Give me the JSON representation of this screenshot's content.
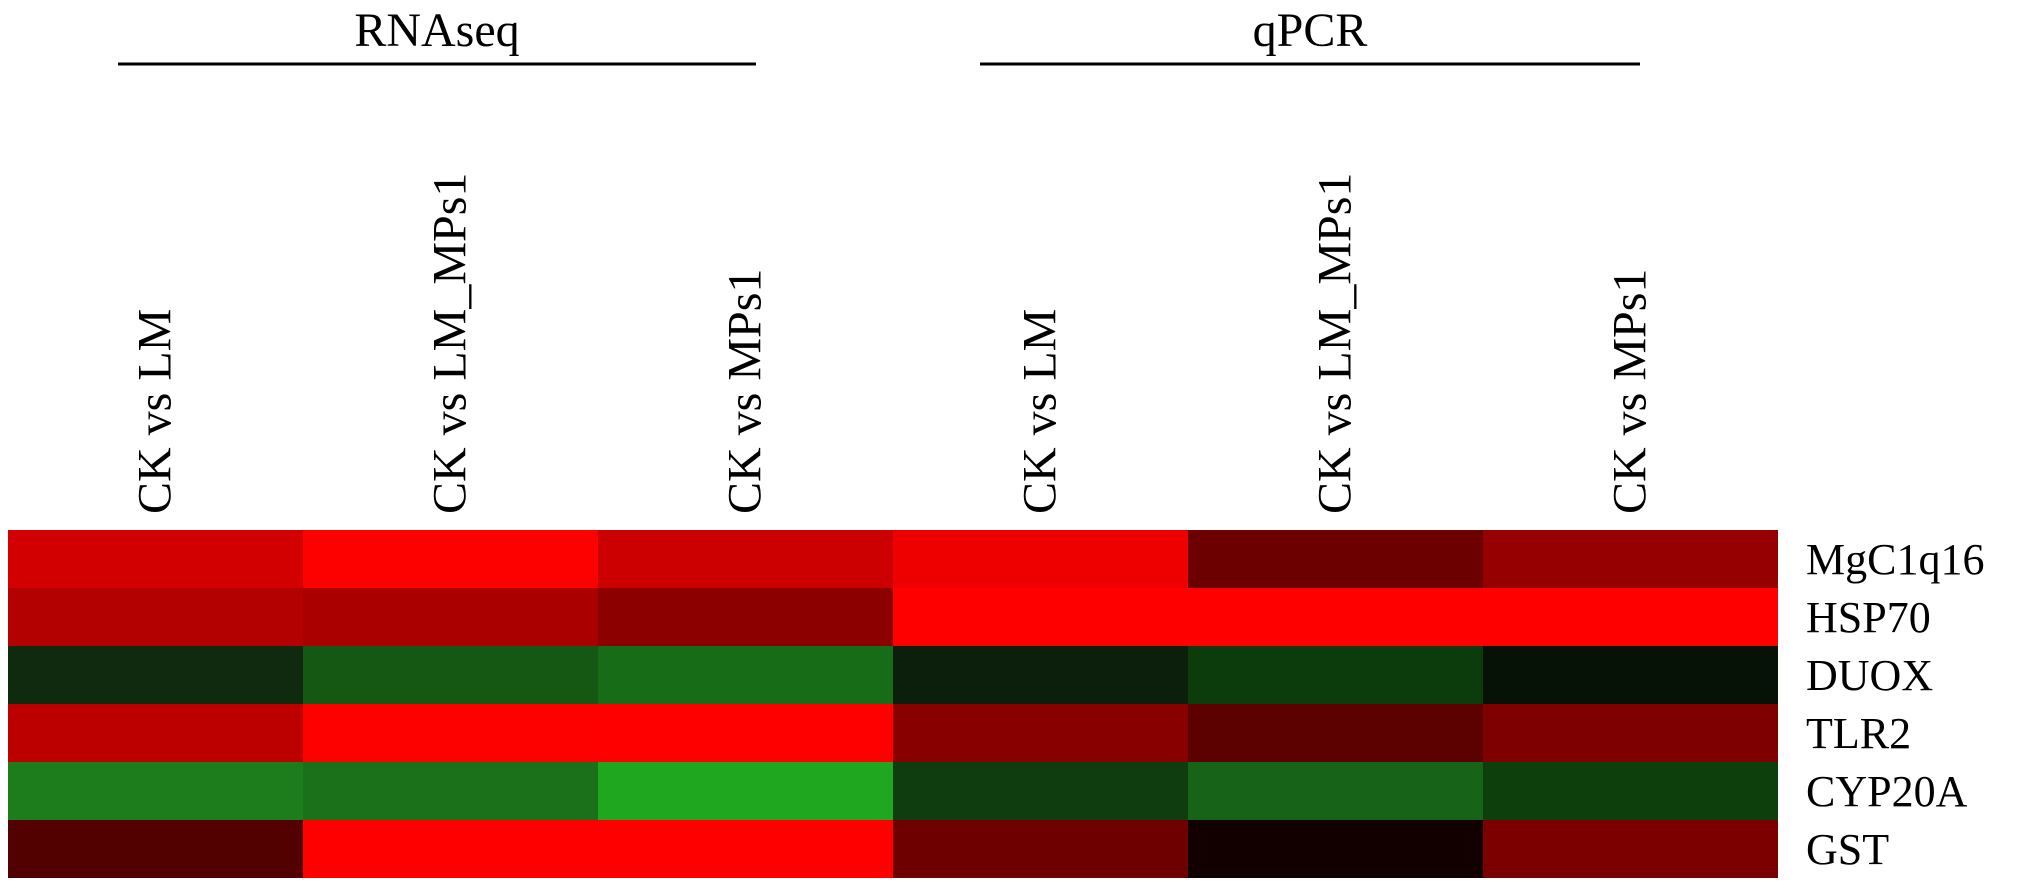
{
  "chart_data": {
    "type": "heatmap",
    "groups": [
      {
        "label": "RNAseq",
        "columns": [
          0,
          1,
          2
        ]
      },
      {
        "label": "qPCR",
        "columns": [
          3,
          4,
          5
        ]
      }
    ],
    "columns": [
      "CK vs LM",
      "CK vs LM_MPs1",
      "CK vs MPs1",
      "CK vs LM",
      "CK vs LM_MPs1",
      "CK vs MPs1"
    ],
    "rows": [
      "MgC1q16",
      "HSP70",
      "DUOX",
      "TLR2",
      "CYP20A",
      "GST"
    ],
    "cell_colors": [
      [
        "#d20000",
        "#fd0000",
        "#cc0000",
        "#ee0000",
        "#6c0000",
        "#960000"
      ],
      [
        "#b30000",
        "#ab0000",
        "#8d0000",
        "#fe0000",
        "#fe0000",
        "#fe0000"
      ],
      [
        "#0f2a0f",
        "#145814",
        "#176d17",
        "#0c1f0c",
        "#0c3c0c",
        "#051205"
      ],
      [
        "#bc0000",
        "#fd0000",
        "#fe0000",
        "#890000",
        "#5c0000",
        "#7e0000"
      ],
      [
        "#1d7d1d",
        "#1a711a",
        "#1fa81f",
        "#0f3d0f",
        "#176317",
        "#0c3f0c"
      ],
      [
        "#520000",
        "#fe0000",
        "#fe0000",
        "#6e0000",
        "#120000",
        "#7c0000"
      ]
    ],
    "color_scale": {
      "positive": "#ff0000",
      "zero": "#000000",
      "negative": "#22b022"
    },
    "legend": "none",
    "grid": false
  }
}
